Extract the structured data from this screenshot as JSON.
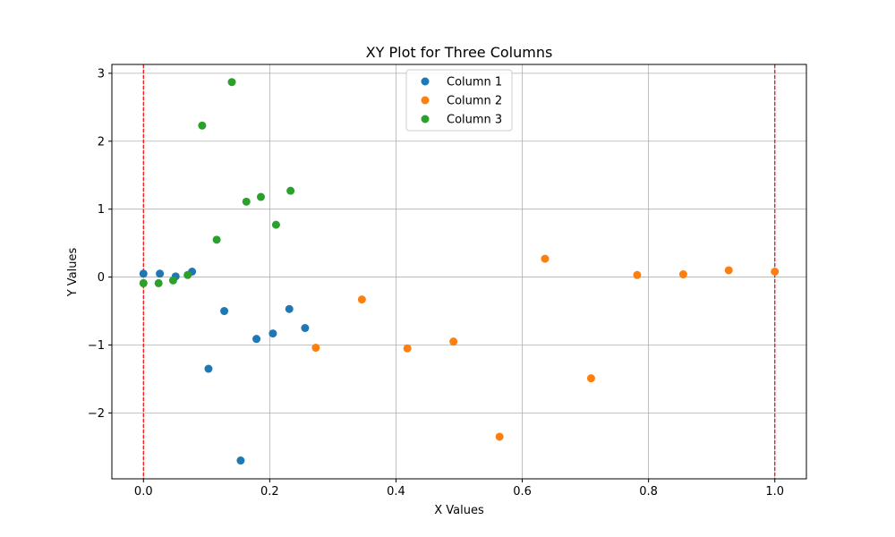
{
  "chart_data": {
    "type": "scatter",
    "title": "XY Plot for Three Columns",
    "xlabel": "X Values",
    "ylabel": "Y Values",
    "xlim": [
      -0.05,
      1.05
    ],
    "ylim": [
      -2.97,
      3.13
    ],
    "xticks": [
      0.0,
      0.2,
      0.4,
      0.6,
      0.8,
      1.0
    ],
    "xtick_labels": [
      "0.0",
      "0.2",
      "0.4",
      "0.6",
      "0.8",
      "1.0"
    ],
    "yticks": [
      -2,
      -1,
      0,
      1,
      2,
      3
    ],
    "ytick_labels": [
      "−2",
      "−1",
      "0",
      "1",
      "2",
      "3"
    ],
    "grid": true,
    "legend_position": "top-center",
    "vertical_lines": [
      {
        "x": 0.0,
        "color": "#ff0000",
        "style": "dashed"
      },
      {
        "x": 1.0,
        "color": "#ff0000",
        "style": "dashed"
      }
    ],
    "series": [
      {
        "name": "Column 1",
        "color": "#1f77b4",
        "points": [
          [
            0.0,
            0.05
          ],
          [
            0.026,
            0.05
          ],
          [
            0.051,
            0.01
          ],
          [
            0.077,
            0.08
          ],
          [
            0.103,
            -1.35
          ],
          [
            0.128,
            -0.5
          ],
          [
            0.154,
            -2.7
          ],
          [
            0.179,
            -0.91
          ],
          [
            0.205,
            -0.83
          ],
          [
            0.231,
            -0.47
          ],
          [
            0.256,
            -0.75
          ]
        ]
      },
      {
        "name": "Column 2",
        "color": "#ff7f0e",
        "points": [
          [
            0.0,
            -0.09
          ],
          [
            0.273,
            -1.04
          ],
          [
            0.346,
            -0.33
          ],
          [
            0.418,
            -1.05
          ],
          [
            0.491,
            -0.95
          ],
          [
            0.564,
            -2.35
          ],
          [
            0.636,
            0.27
          ],
          [
            0.709,
            -1.49
          ],
          [
            0.782,
            0.03
          ],
          [
            0.855,
            0.04
          ],
          [
            0.927,
            0.1
          ],
          [
            1.0,
            0.08
          ]
        ]
      },
      {
        "name": "Column 3",
        "color": "#2ca02c",
        "points": [
          [
            0.0,
            -0.09
          ],
          [
            0.024,
            -0.09
          ],
          [
            0.047,
            -0.05
          ],
          [
            0.07,
            0.03
          ],
          [
            0.093,
            2.23
          ],
          [
            0.116,
            0.55
          ],
          [
            0.14,
            2.87
          ],
          [
            0.163,
            1.11
          ],
          [
            0.186,
            1.18
          ],
          [
            0.21,
            0.77
          ],
          [
            0.233,
            1.27
          ]
        ]
      }
    ]
  }
}
